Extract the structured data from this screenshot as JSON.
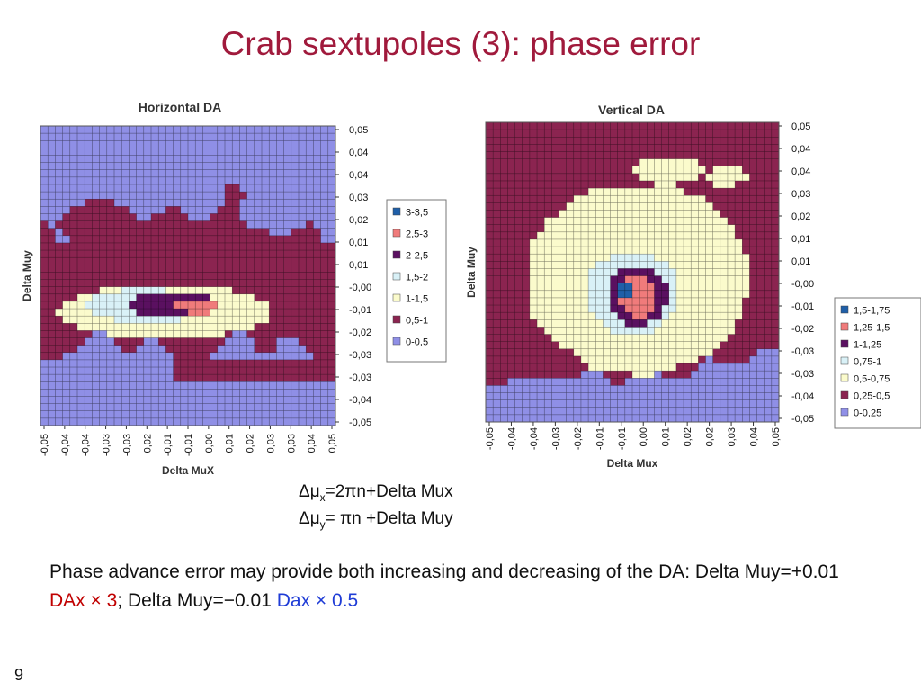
{
  "slide": {
    "title": "Crab sextupoles (3): phase error",
    "page_number": "9"
  },
  "formulas": {
    "line1": {
      "delta": "Δμ",
      "sub": "x",
      "rest": "=2πn+Delta Mux"
    },
    "line2": {
      "delta": "Δμ",
      "sub": "y",
      "rest": "= πn +Delta Muy"
    }
  },
  "note": {
    "part1": "Phase advance error may provide both increasing and decreasing of the DA: Delta Muy=+0.01 ",
    "red": "DAx × 3",
    "part2": "; Delta Muy=−0.01 ",
    "blue": "Dax × 0.5"
  },
  "chart_data": [
    {
      "type": "heatmap",
      "title": "Horizontal DA",
      "xlabel": "Delta MuX",
      "ylabel": "Delta Muy",
      "x_ticks": [
        "-0,05",
        "-0,04",
        "-0,04",
        "-0,03",
        "-0,03",
        "-0,02",
        "-0,01",
        "-0,01",
        "0,00",
        "0,01",
        "0,02",
        "0,03",
        "0,03",
        "0,04",
        "0,05"
      ],
      "y_ticks": [
        "0,05",
        "0,04",
        "0,04",
        "0,03",
        "0,02",
        "0,01",
        "0,01",
        "-0,00",
        "-0,01",
        "-0,02",
        "-0,03",
        "-0,03",
        "-0,04",
        "-0,05"
      ],
      "xlim": [
        -0.05,
        0.05
      ],
      "ylim": [
        -0.05,
        0.05
      ],
      "legend": [
        {
          "label": "3-3,5",
          "color": "#1f5fa8"
        },
        {
          "label": "2,5-3",
          "color": "#f07b7b"
        },
        {
          "label": "2-2,5",
          "color": "#5a1060"
        },
        {
          "label": "1,5-2",
          "color": "#d9f1f7"
        },
        {
          "label": "1-1,5",
          "color": "#fbfbcc"
        },
        {
          "label": "0,5-1",
          "color": "#8b2450"
        },
        {
          "label": "0-0,5",
          "color": "#8f8fe6"
        }
      ],
      "legend_position": "right",
      "grid": true,
      "levels_by_region": [
        {
          "center": [
            -0.015,
            -0.012
          ],
          "value": 2.75
        },
        {
          "center": [
            -0.02,
            -0.011
          ],
          "value": 2.25
        },
        {
          "center": [
            -0.02,
            -0.01
          ],
          "value": 1.75
        },
        {
          "center": [
            -0.02,
            -0.01
          ],
          "value": 1.25
        },
        {
          "center": [
            0.0,
            0.005
          ],
          "value": 0.75
        },
        {
          "center": [
            -0.05,
            0.05
          ],
          "value": 0.25
        }
      ]
    },
    {
      "type": "heatmap",
      "title": "Vertical DA",
      "xlabel": "Delta Mux",
      "ylabel": "Delta Muy",
      "x_ticks": [
        "-0,05",
        "-0,04",
        "-0,04",
        "-0,03",
        "-0,02",
        "-0,01",
        "-0,01",
        "0,00",
        "0,01",
        "0,02",
        "0,02",
        "0,03",
        "0,04",
        "0,05"
      ],
      "y_ticks": [
        "0,05",
        "0,04",
        "0,04",
        "0,03",
        "0,02",
        "0,01",
        "0,01",
        "-0,00",
        "-0,01",
        "-0,02",
        "-0,03",
        "-0,03",
        "-0,04",
        "-0,05"
      ],
      "xlim": [
        -0.05,
        0.05
      ],
      "ylim": [
        -0.05,
        0.05
      ],
      "legend": [
        {
          "label": "1,5-1,75",
          "color": "#1f5fa8"
        },
        {
          "label": "1,25-1,5",
          "color": "#f07b7b"
        },
        {
          "label": "1-1,25",
          "color": "#5a1060"
        },
        {
          "label": "0,75-1",
          "color": "#d9f1f7"
        },
        {
          "label": "0,5-0,75",
          "color": "#fbfbcc"
        },
        {
          "label": "0,25-0,5",
          "color": "#8b2450"
        },
        {
          "label": "0-0,25",
          "color": "#8f8fe6"
        }
      ],
      "legend_position": "right",
      "grid": true,
      "levels_by_region": [
        {
          "center": [
            -0.01,
            -0.007
          ],
          "value": 1.6
        },
        {
          "center": [
            -0.01,
            -0.009
          ],
          "value": 1.4
        },
        {
          "center": [
            -0.01,
            -0.009
          ],
          "value": 1.1
        },
        {
          "center": [
            -0.01,
            -0.008
          ],
          "value": 0.85
        },
        {
          "center": [
            -0.01,
            -0.005
          ],
          "value": 0.6
        },
        {
          "center": [
            0.0,
            0.0
          ],
          "value": 0.4
        },
        {
          "center": [
            0.0,
            -0.05
          ],
          "value": 0.1
        }
      ]
    }
  ]
}
